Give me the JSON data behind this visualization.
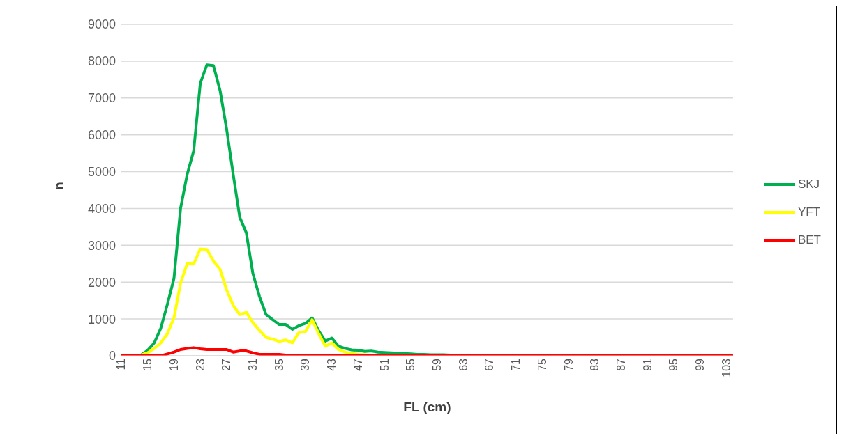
{
  "chart_data": {
    "type": "line",
    "xlabel": "FL (cm)",
    "ylabel": "n",
    "categories": [
      "11",
      null,
      null,
      null,
      "15",
      null,
      null,
      null,
      "19",
      null,
      null,
      null,
      "23",
      null,
      null,
      null,
      "27",
      null,
      null,
      null,
      "31",
      null,
      null,
      null,
      "35",
      null,
      null,
      null,
      "39",
      null,
      null,
      null,
      "43",
      null,
      null,
      null,
      "47",
      null,
      null,
      null,
      "51",
      null,
      null,
      null,
      "55",
      null,
      null,
      null,
      "59",
      null,
      null,
      null,
      "63",
      null,
      null,
      null,
      "67",
      null,
      null,
      null,
      "71",
      null,
      null,
      null,
      "75",
      null,
      null,
      null,
      "79",
      null,
      null,
      null,
      "83",
      null,
      null,
      null,
      "87",
      null,
      null,
      null,
      "91",
      null,
      null,
      null,
      "95",
      null,
      null,
      null,
      "99",
      null,
      null,
      null,
      "103",
      null
    ],
    "series": [
      {
        "name": "SKJ",
        "color": "#00b050",
        "values": [
          null,
          null,
          0,
          20,
          150,
          350,
          750,
          1400,
          2100,
          4000,
          4920,
          5570,
          7400,
          7900,
          7880,
          7210,
          6160,
          4930,
          3760,
          3340,
          2230,
          1610,
          1120,
          980,
          850,
          850,
          720,
          820,
          880,
          1030,
          680,
          400,
          480,
          260,
          200,
          160,
          150,
          120,
          130,
          100,
          90,
          80,
          70,
          60,
          50,
          40,
          40,
          30,
          30,
          30,
          20,
          20,
          20,
          0,
          0,
          null,
          null,
          null,
          null,
          null,
          null,
          null,
          null,
          null,
          null,
          null,
          null,
          null,
          null,
          null,
          null,
          null,
          null,
          null,
          null,
          null,
          null,
          null,
          null,
          null,
          null,
          null,
          null,
          null,
          null,
          null,
          null,
          null,
          null,
          null,
          null,
          null,
          null,
          null
        ]
      },
      {
        "name": "YFT",
        "color": "#ffff00",
        "values": [
          null,
          null,
          0,
          20,
          80,
          200,
          350,
          600,
          1030,
          1970,
          2500,
          2490,
          2900,
          2890,
          2570,
          2350,
          1790,
          1370,
          1120,
          1180,
          900,
          690,
          500,
          450,
          390,
          430,
          350,
          630,
          660,
          980,
          600,
          260,
          350,
          170,
          100,
          60,
          40,
          30,
          20,
          20,
          20,
          20,
          20,
          20,
          20,
          20,
          20,
          20,
          20,
          20,
          0,
          0,
          null,
          null,
          null,
          null,
          null,
          null,
          null,
          null,
          null,
          null,
          null,
          null,
          null,
          null,
          null,
          null,
          null,
          null,
          null,
          null,
          null,
          null,
          null,
          null,
          null,
          null,
          null,
          null,
          null,
          null,
          null,
          null,
          null,
          null,
          null,
          null,
          null,
          null,
          null,
          null,
          null,
          null
        ]
      },
      {
        "name": "BET",
        "color": "#ff0000",
        "values": [
          0,
          0,
          0,
          0,
          0,
          0,
          0,
          50,
          100,
          170,
          200,
          220,
          190,
          170,
          170,
          170,
          170,
          100,
          130,
          130,
          80,
          40,
          40,
          40,
          40,
          20,
          20,
          0,
          10,
          0,
          0,
          0,
          0,
          0,
          0,
          0,
          0,
          0,
          0,
          0,
          0,
          0,
          0,
          0,
          0,
          0,
          0,
          0,
          0,
          0,
          0,
          0,
          0,
          0,
          0,
          0,
          0,
          0,
          0,
          0,
          0,
          0,
          0,
          0,
          0,
          0,
          0,
          0,
          0,
          0,
          0,
          0,
          0,
          0,
          0,
          0,
          0,
          0,
          0,
          0,
          0,
          0,
          0,
          0,
          0,
          0,
          0,
          0,
          0,
          0,
          0,
          0,
          0,
          0
        ]
      }
    ],
    "ylim": [
      0,
      9000
    ],
    "yticks": [
      0,
      1000,
      2000,
      3000,
      4000,
      5000,
      6000,
      7000,
      8000,
      9000
    ],
    "grid": "y",
    "legend": "right",
    "marker": "none",
    "line_style": "solid"
  }
}
